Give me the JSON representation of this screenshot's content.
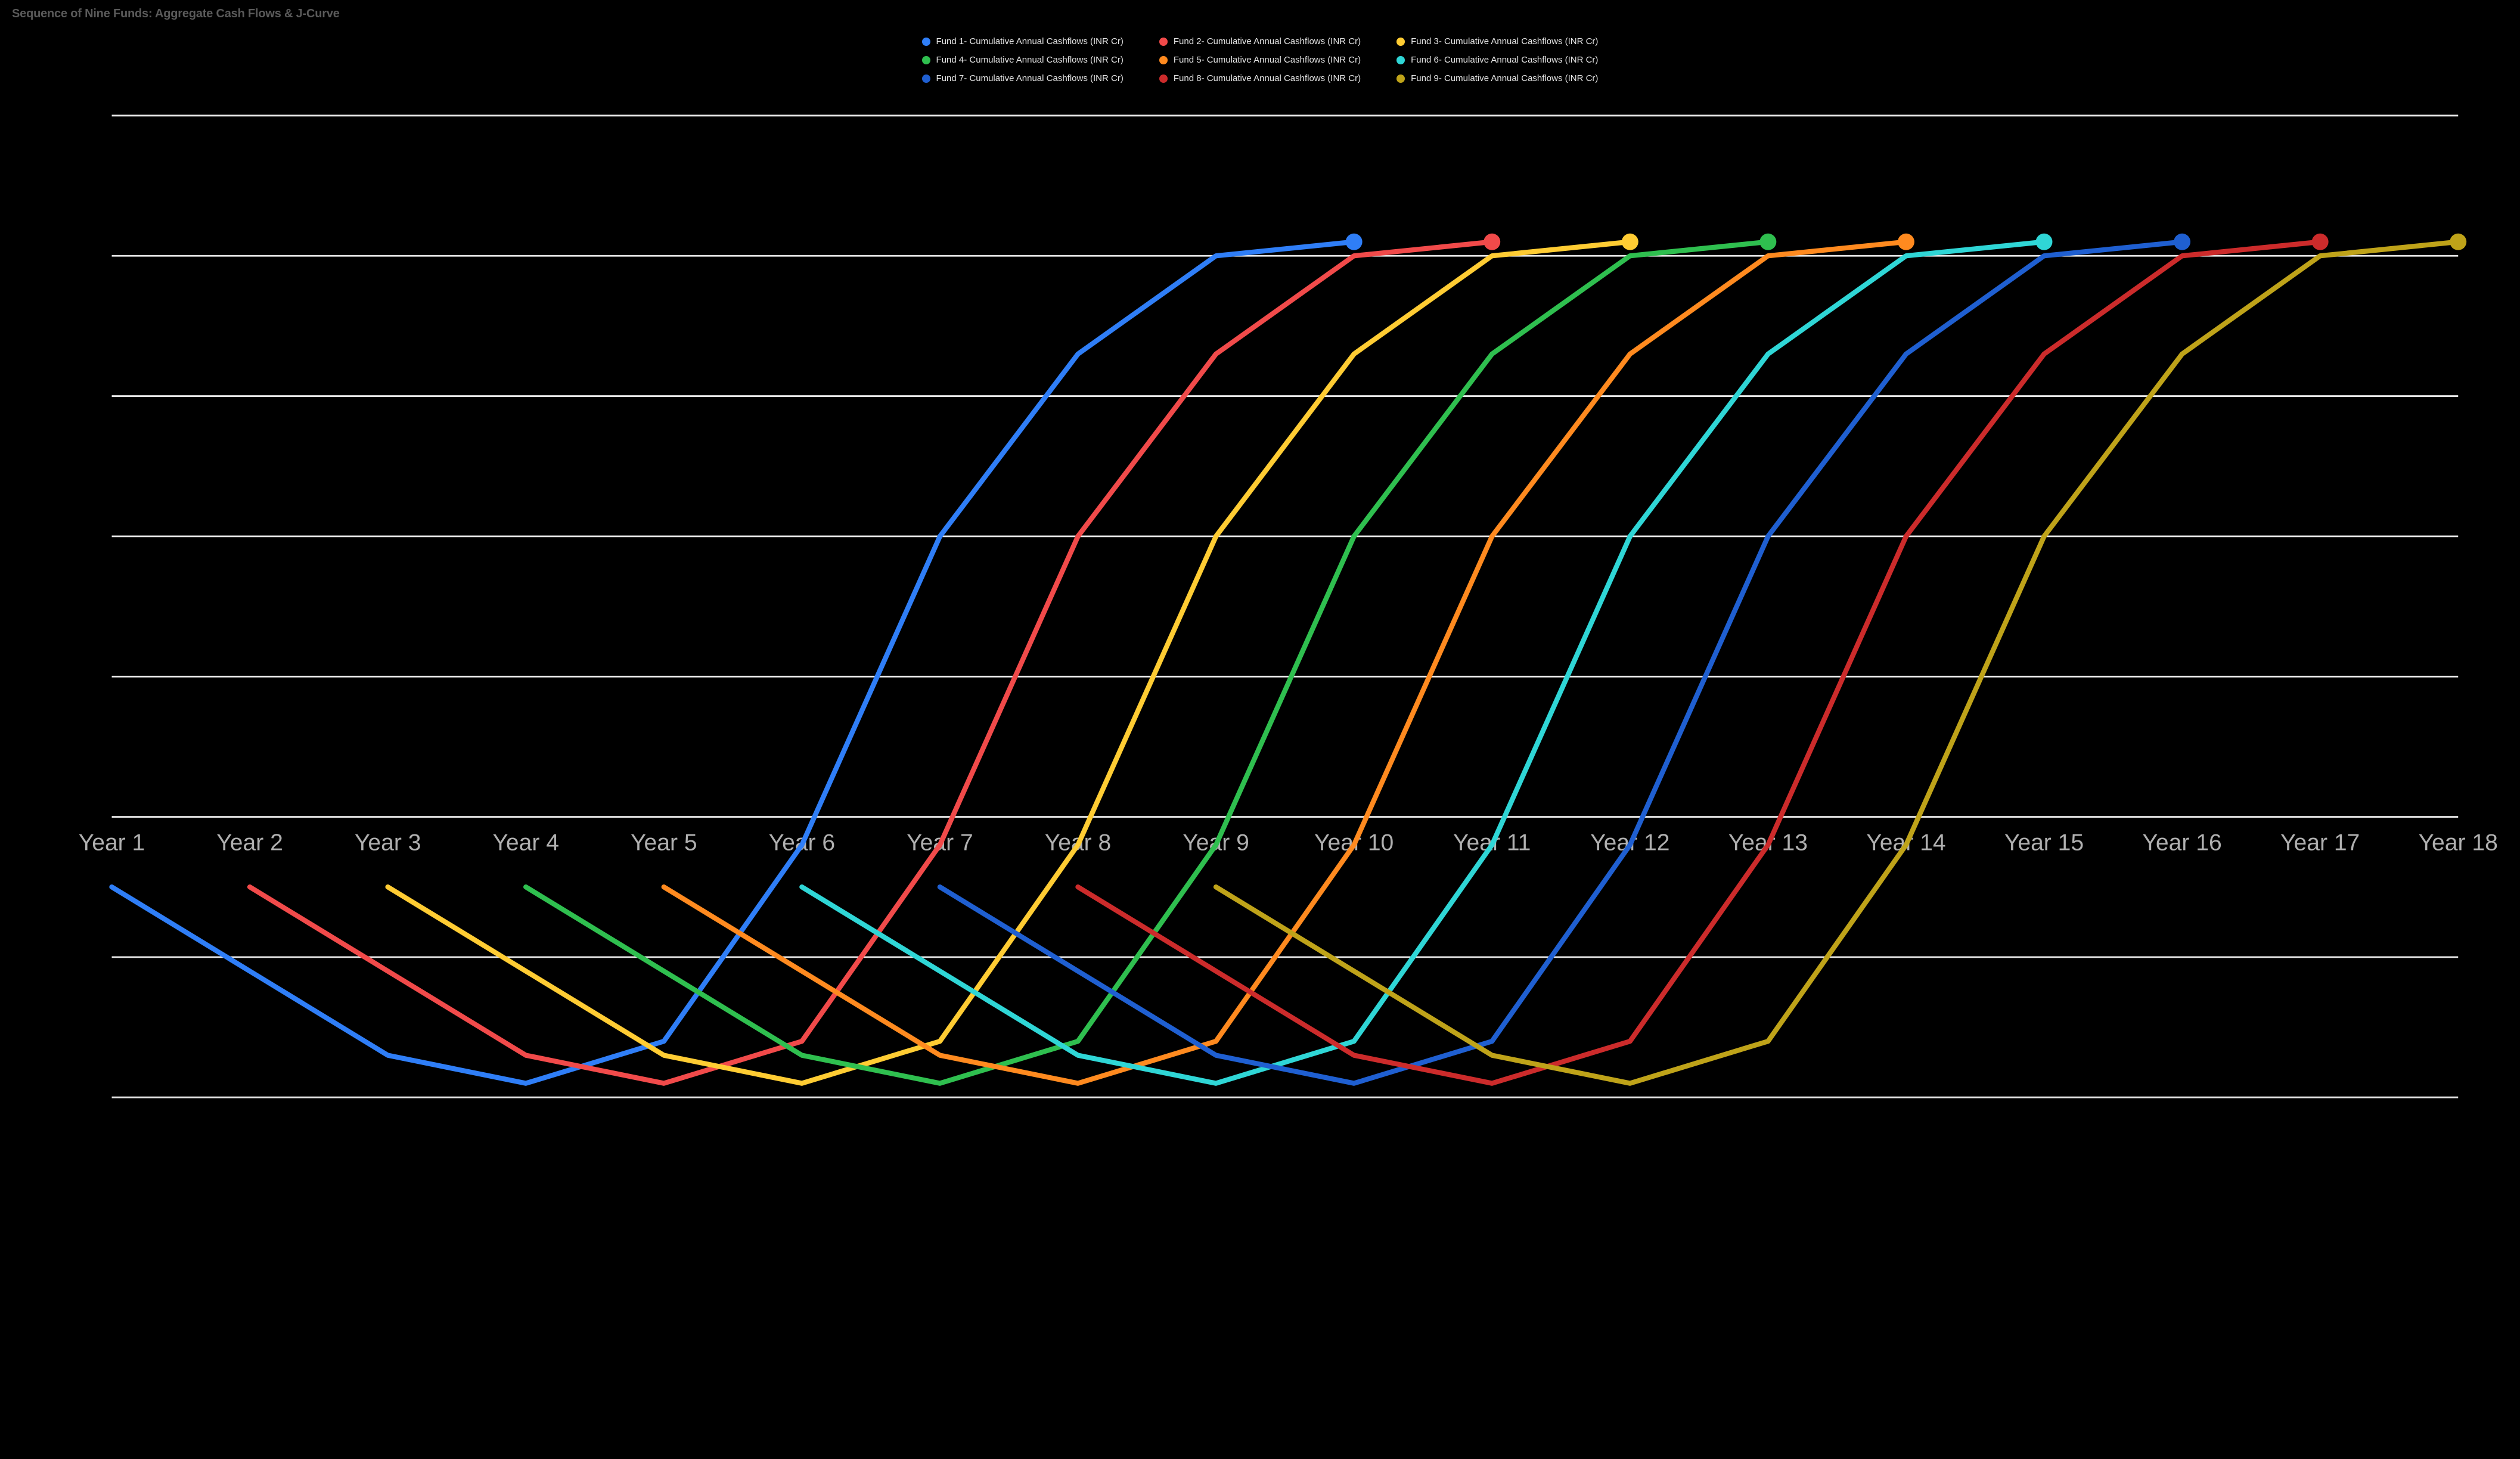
{
  "title": "Sequence of Nine Funds: Aggregate Cash Flows & J-Curve",
  "chart": {
    "type": "line",
    "background_color": "#000000",
    "grid_color": "#e5e5e5",
    "title_color": "#5a5a5a",
    "title_fontsize": 20,
    "legend_text_color": "#e5e5e5",
    "legend_fontsize": 15,
    "xaxis_label_color": "#b0b0b0",
    "xaxis_label_fontsize": 14,
    "line_width": 3,
    "marker_radius": 5,
    "ylim": [
      -1.0,
      2.5
    ],
    "ytick_step": 0.5,
    "categories": [
      "Year 1",
      "Year 2",
      "Year 3",
      "Year 4",
      "Year 5",
      "Year 6",
      "Year 7",
      "Year 8",
      "Year 9",
      "Year 10",
      "Year 11",
      "Year 12",
      "Year 13",
      "Year 14",
      "Year 15",
      "Year 16",
      "Year 17",
      "Year 18"
    ],
    "jcurve_shape": [
      -0.25,
      -0.55,
      -0.85,
      -0.95,
      -0.8,
      -0.1,
      1.0,
      1.65,
      2.0,
      2.05
    ],
    "series": [
      {
        "label": "Fund 1- Cumulative Annual Cashflows (INR Cr)",
        "color": "#2f7ef7",
        "start_index": 0
      },
      {
        "label": "Fund 2- Cumulative Annual Cashflows (INR Cr)",
        "color": "#f14a4a",
        "start_index": 1
      },
      {
        "label": "Fund 3- Cumulative Annual Cashflows (INR Cr)",
        "color": "#ffcc33",
        "start_index": 2
      },
      {
        "label": "Fund 4- Cumulative Annual Cashflows (INR Cr)",
        "color": "#2fbf4f",
        "start_index": 3
      },
      {
        "label": "Fund 5- Cumulative Annual Cashflows (INR Cr)",
        "color": "#ff8a1f",
        "start_index": 4
      },
      {
        "label": "Fund 6- Cumulative Annual Cashflows (INR Cr)",
        "color": "#2fd6d6",
        "start_index": 5
      },
      {
        "label": "Fund 7- Cumulative Annual Cashflows (INR Cr)",
        "color": "#1f5fd1",
        "start_index": 6
      },
      {
        "label": "Fund 8- Cumulative Annual Cashflows (INR Cr)",
        "color": "#cc2b2b",
        "start_index": 7
      },
      {
        "label": "Fund 9- Cumulative Annual Cashflows (INR Cr)",
        "color": "#bfa319",
        "start_index": 8
      }
    ]
  }
}
